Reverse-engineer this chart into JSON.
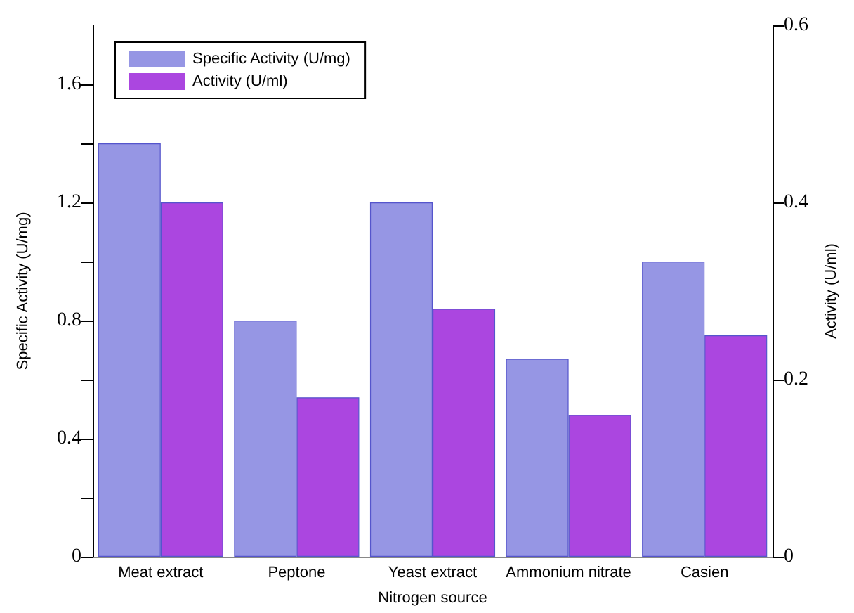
{
  "chart_data": {
    "type": "bar",
    "xlabel": "Nitrogen source",
    "ylabel": "Specific Activity (U/mg)",
    "y2label": "Activity (U/ml)",
    "categories": [
      "Meat extract",
      "Peptone",
      "Yeast extract",
      "Ammonium nitrate",
      "Casien"
    ],
    "series": [
      {
        "name": "Specific Activity (U/mg)",
        "color": "#9696e4",
        "values": [
          1.4,
          0.8,
          1.2,
          0.67,
          1.0
        ]
      },
      {
        "name": "Activity (U/ml)",
        "color": "#ab46e0",
        "values": [
          0.4,
          0.18,
          0.28,
          0.16,
          0.25
        ],
        "axis": "y2"
      }
    ],
    "ylim": [
      0,
      1.8
    ],
    "yticks": [
      0,
      {
        "value": 0.2,
        "label": null
      },
      0.4,
      {
        "value": 0.6,
        "label": null
      },
      0.8,
      {
        "value": 1.0,
        "label": null
      },
      1.2,
      {
        "value": 1.4,
        "label": null
      },
      1.6
    ],
    "y2lim": [
      0,
      0.6
    ],
    "y2ticks": [
      0,
      0.2,
      0.4,
      0.6
    ],
    "legend": "top left",
    "grid": false
  }
}
